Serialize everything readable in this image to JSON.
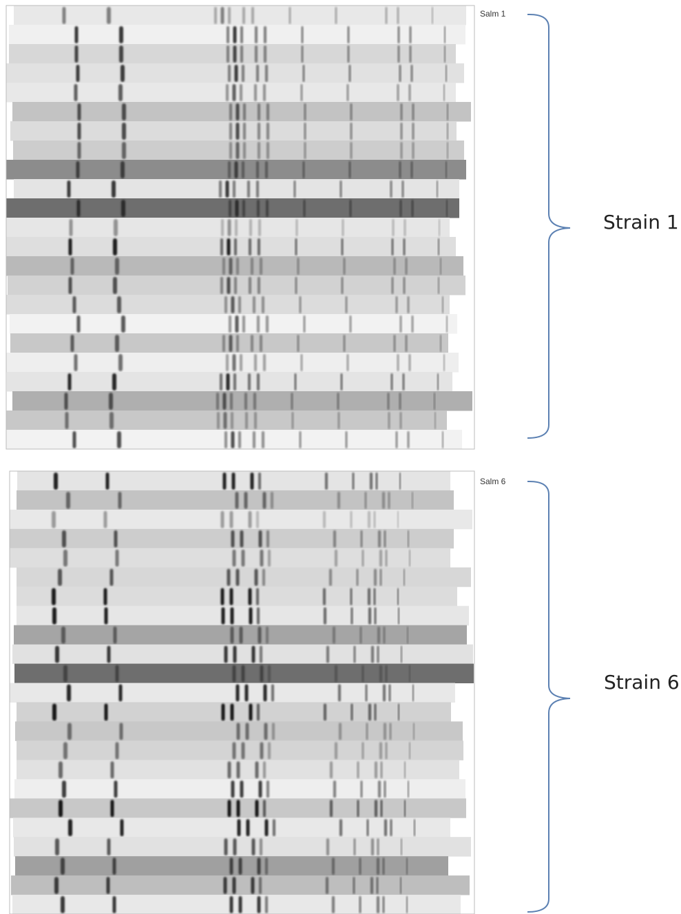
{
  "panels": [
    {
      "lane_label": "Salm 1",
      "strain": "Strain 1"
    },
    {
      "lane_label": "Salm 6",
      "strain": "Strain 6"
    }
  ]
}
